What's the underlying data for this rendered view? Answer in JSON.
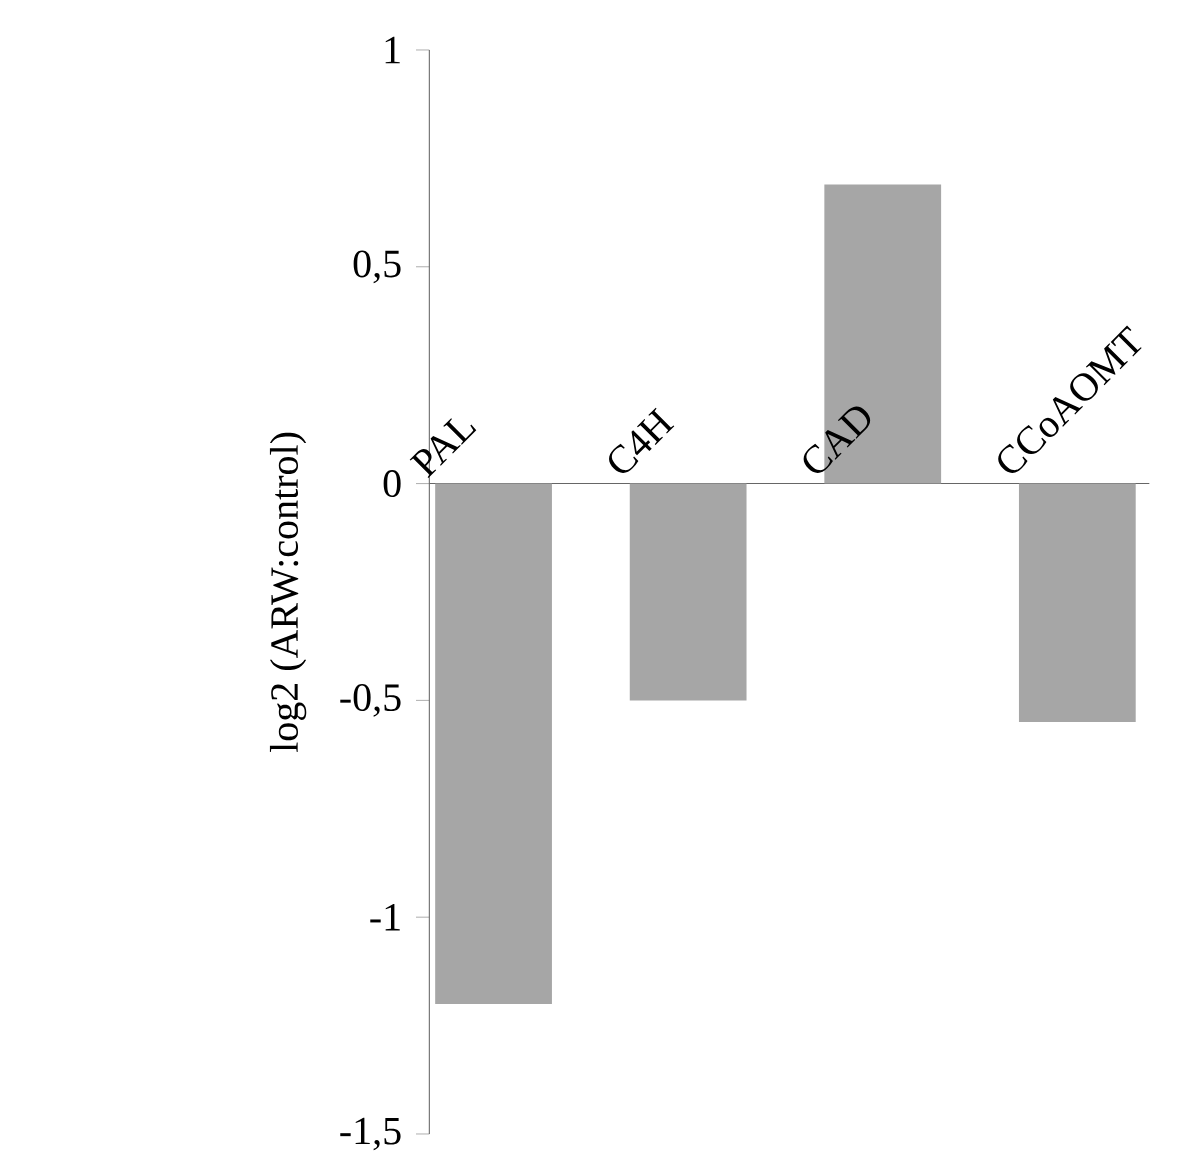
{
  "chart_data": {
    "type": "bar",
    "ylabel": "log2 (ARW:control)",
    "categories": [
      "PAL",
      "C4H",
      "CAD",
      "CCoAOMT"
    ],
    "values": [
      -1.2,
      -0.5,
      0.69,
      -0.55
    ],
    "color": "#a6a6a6",
    "ylim": [
      -1.5,
      1
    ],
    "yticks": [
      {
        "value": -1.5,
        "label": "-1,5"
      },
      {
        "value": -1,
        "label": "-1"
      },
      {
        "value": -0.5,
        "label": "-0,5"
      },
      0,
      {
        "value": 0.5,
        "label": "0,5"
      },
      1
    ],
    "grid": false
  }
}
